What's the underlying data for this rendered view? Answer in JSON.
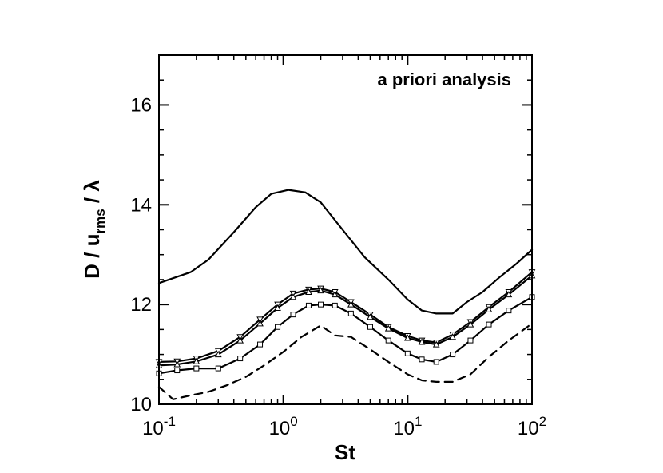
{
  "chart_data": {
    "type": "line",
    "annotation": "a priori analysis",
    "xlabel": "St",
    "ylabel": {
      "prefix": "D / u",
      "subscript": "rms",
      "suffix": " / λ"
    },
    "xscale": "log",
    "xlim": [
      0.1,
      100
    ],
    "ylim": [
      10,
      17
    ],
    "x_ticks": [
      {
        "value": 0.1,
        "base": "10",
        "exp": "-1"
      },
      {
        "value": 1,
        "base": "10",
        "exp": "0"
      },
      {
        "value": 10,
        "base": "10",
        "exp": "1"
      },
      {
        "value": 100,
        "base": "10",
        "exp": "2"
      }
    ],
    "y_ticks": [
      10,
      12,
      14,
      16
    ],
    "grid": false,
    "series": [
      {
        "style": "solid",
        "marker": "none",
        "x": [
          0.1,
          0.18,
          0.25,
          0.4,
          0.6,
          0.8,
          1.1,
          1.5,
          2.0,
          3.0,
          4.5,
          7.0,
          10.0,
          13.0,
          17.0,
          23.0,
          30.0,
          40.0,
          55.0,
          75.0,
          100.0
        ],
        "y": [
          12.43,
          12.65,
          12.9,
          13.45,
          13.95,
          14.22,
          14.3,
          14.25,
          14.05,
          13.5,
          12.95,
          12.5,
          12.1,
          11.88,
          11.82,
          11.82,
          12.05,
          12.25,
          12.55,
          12.82,
          13.1
        ]
      },
      {
        "style": "solid",
        "marker": "triangle-down",
        "x": [
          0.1,
          0.14,
          0.2,
          0.3,
          0.45,
          0.65,
          0.9,
          1.2,
          1.6,
          2.0,
          2.6,
          3.5,
          5.0,
          7.0,
          10.0,
          13.0,
          17.0,
          23.0,
          32.0,
          45.0,
          65.0,
          100.0
        ],
        "y": [
          10.85,
          10.86,
          10.92,
          11.07,
          11.35,
          11.7,
          12.0,
          12.22,
          12.3,
          12.32,
          12.25,
          12.05,
          11.8,
          11.55,
          11.37,
          11.28,
          11.24,
          11.4,
          11.65,
          11.95,
          12.25,
          12.65
        ]
      },
      {
        "style": "solid",
        "marker": "triangle-up",
        "x": [
          0.1,
          0.14,
          0.2,
          0.3,
          0.45,
          0.65,
          0.9,
          1.2,
          1.6,
          2.0,
          2.6,
          3.5,
          5.0,
          7.0,
          10.0,
          13.0,
          17.0,
          23.0,
          32.0,
          45.0,
          65.0,
          100.0
        ],
        "y": [
          10.78,
          10.8,
          10.86,
          11.0,
          11.28,
          11.62,
          11.93,
          12.15,
          12.25,
          12.28,
          12.2,
          12.0,
          11.75,
          11.52,
          11.33,
          11.25,
          11.2,
          11.35,
          11.6,
          11.9,
          12.2,
          12.58
        ]
      },
      {
        "style": "solid",
        "marker": "square",
        "x": [
          0.1,
          0.14,
          0.2,
          0.3,
          0.45,
          0.65,
          0.9,
          1.2,
          1.6,
          2.0,
          2.6,
          3.5,
          5.0,
          7.0,
          10.0,
          13.0,
          17.0,
          23.0,
          32.0,
          45.0,
          65.0,
          100.0
        ],
        "y": [
          10.62,
          10.68,
          10.72,
          10.72,
          10.92,
          11.2,
          11.55,
          11.8,
          11.98,
          12.0,
          11.98,
          11.82,
          11.55,
          11.28,
          11.02,
          10.9,
          10.85,
          11.0,
          11.28,
          11.6,
          11.88,
          12.15
        ]
      },
      {
        "style": "dashed",
        "marker": "none",
        "x": [
          0.1,
          0.13,
          0.18,
          0.25,
          0.35,
          0.5,
          0.7,
          1.0,
          1.4,
          2.0,
          2.6,
          3.5,
          5.0,
          7.0,
          10.0,
          13.0,
          17.0,
          23.0,
          32.0,
          45.0,
          65.0,
          100.0
        ],
        "y": [
          10.35,
          10.1,
          10.18,
          10.25,
          10.38,
          10.55,
          10.78,
          11.05,
          11.35,
          11.58,
          11.38,
          11.35,
          11.1,
          10.85,
          10.6,
          10.48,
          10.45,
          10.45,
          10.6,
          10.95,
          11.28,
          11.62
        ]
      }
    ]
  }
}
